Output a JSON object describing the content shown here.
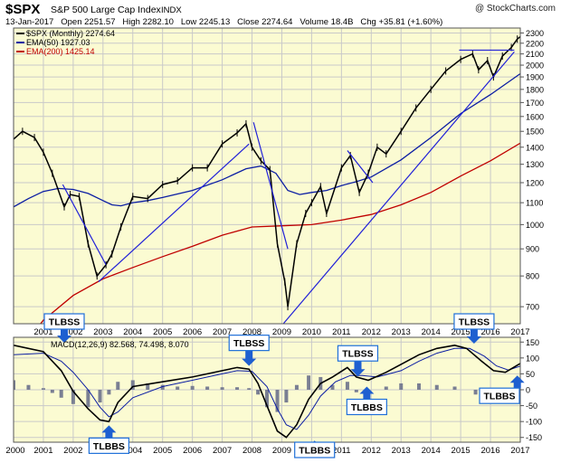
{
  "header": {
    "symbol": "$SPX",
    "name": "S&P 500 Large Cap Index",
    "exchange": "INDX",
    "watermark": "@ StockCharts.com",
    "quote": "13-Jan-2017   Open 2251.57   High 2282.10   Low 2245.13   Close 2274.64   Volume 18.4B   Chg +35.81 (+1.60%)"
  },
  "colors": {
    "panel_bg": "#fbfbd2",
    "price": "#000000",
    "ema50": "#0b1da3",
    "ema200": "#c00000",
    "trendline": "#2020d8",
    "histogram": "#7a7f93",
    "callout_fill": "#ffffff",
    "callout_border": "#1e6fd8",
    "arrow": "#1e5fd0"
  },
  "chart_data": [
    {
      "type": "line",
      "title": "$SPX S&P 500 Large Cap Index INDX",
      "scale": "log",
      "ylim": [
        650,
        2350
      ],
      "xlim": [
        2000,
        2017
      ],
      "x_ticks": [
        "2001",
        "2002",
        "2003",
        "2004",
        "2005",
        "2006",
        "2007",
        "2008",
        "2009",
        "2010",
        "2011",
        "2012",
        "2013",
        "2014",
        "2015",
        "2016",
        "2017"
      ],
      "y_ticks": [
        700,
        800,
        900,
        1000,
        1100,
        1200,
        1300,
        1400,
        1500,
        1600,
        1700,
        1800,
        1900,
        2000,
        2100,
        2200,
        2300
      ],
      "legend": [
        {
          "name": "$SPX (Monthly) 2274.64",
          "color": "#000000"
        },
        {
          "name": "EMA(50) 1927.03",
          "color": "#0b1da3"
        },
        {
          "name": "EMA(200) 1425.14",
          "color": "#c00000"
        }
      ],
      "series": [
        {
          "name": "$SPX (Monthly) 2274.64",
          "points": [
            [
              2000.0,
              1450
            ],
            [
              2000.3,
              1500
            ],
            [
              2000.7,
              1460
            ],
            [
              2001.0,
              1370
            ],
            [
              2001.3,
              1250
            ],
            [
              2001.7,
              1080
            ],
            [
              2001.9,
              1140
            ],
            [
              2002.2,
              1130
            ],
            [
              2002.5,
              920
            ],
            [
              2002.8,
              800
            ],
            [
              2003.1,
              840
            ],
            [
              2003.3,
              880
            ],
            [
              2003.6,
              990
            ],
            [
              2004.0,
              1130
            ],
            [
              2004.5,
              1120
            ],
            [
              2005.0,
              1190
            ],
            [
              2005.5,
              1210
            ],
            [
              2006.0,
              1280
            ],
            [
              2006.5,
              1280
            ],
            [
              2007.0,
              1420
            ],
            [
              2007.5,
              1490
            ],
            [
              2007.8,
              1550
            ],
            [
              2008.0,
              1400
            ],
            [
              2008.3,
              1320
            ],
            [
              2008.6,
              1270
            ],
            [
              2008.85,
              920
            ],
            [
              2009.1,
              780
            ],
            [
              2009.2,
              700
            ],
            [
              2009.5,
              920
            ],
            [
              2009.8,
              1050
            ],
            [
              2010.0,
              1100
            ],
            [
              2010.3,
              1180
            ],
            [
              2010.5,
              1050
            ],
            [
              2011.0,
              1280
            ],
            [
              2011.3,
              1350
            ],
            [
              2011.6,
              1150
            ],
            [
              2011.9,
              1250
            ],
            [
              2012.2,
              1400
            ],
            [
              2012.5,
              1360
            ],
            [
              2013.0,
              1500
            ],
            [
              2013.5,
              1660
            ],
            [
              2014.0,
              1800
            ],
            [
              2014.5,
              1950
            ],
            [
              2015.0,
              2050
            ],
            [
              2015.4,
              2100
            ],
            [
              2015.6,
              1960
            ],
            [
              2015.9,
              2040
            ],
            [
              2016.1,
              1900
            ],
            [
              2016.4,
              2080
            ],
            [
              2016.7,
              2160
            ],
            [
              2016.9,
              2240
            ],
            [
              2017.05,
              2275
            ]
          ]
        },
        {
          "name": "EMA(50) 1927.03",
          "points": [
            [
              2000.0,
              1080
            ],
            [
              2000.5,
              1120
            ],
            [
              2001.0,
              1155
            ],
            [
              2001.5,
              1170
            ],
            [
              2002.0,
              1165
            ],
            [
              2002.5,
              1145
            ],
            [
              2003.0,
              1110
            ],
            [
              2003.3,
              1090
            ],
            [
              2003.6,
              1085
            ],
            [
              2004.0,
              1100
            ],
            [
              2004.5,
              1110
            ],
            [
              2005.0,
              1125
            ],
            [
              2006.0,
              1160
            ],
            [
              2007.0,
              1215
            ],
            [
              2007.8,
              1275
            ],
            [
              2008.3,
              1290
            ],
            [
              2008.8,
              1250
            ],
            [
              2009.2,
              1160
            ],
            [
              2009.6,
              1140
            ],
            [
              2010.0,
              1150
            ],
            [
              2010.5,
              1160
            ],
            [
              2011.0,
              1185
            ],
            [
              2011.5,
              1205
            ],
            [
              2012.0,
              1230
            ],
            [
              2013.0,
              1325
            ],
            [
              2014.0,
              1460
            ],
            [
              2015.0,
              1620
            ],
            [
              2016.0,
              1760
            ],
            [
              2017.0,
              1927
            ]
          ]
        },
        {
          "name": "EMA(200) 1425.14",
          "points": [
            [
              2000.0,
              560
            ],
            [
              2001.0,
              660
            ],
            [
              2002.0,
              735
            ],
            [
              2003.0,
              790
            ],
            [
              2004.0,
              830
            ],
            [
              2005.0,
              870
            ],
            [
              2006.0,
              910
            ],
            [
              2007.0,
              955
            ],
            [
              2008.0,
              990
            ],
            [
              2009.0,
              995
            ],
            [
              2010.0,
              1000
            ],
            [
              2011.0,
              1020
            ],
            [
              2012.0,
              1045
            ],
            [
              2013.0,
              1090
            ],
            [
              2014.0,
              1150
            ],
            [
              2015.0,
              1235
            ],
            [
              2016.0,
              1320
            ],
            [
              2017.0,
              1425
            ]
          ]
        }
      ],
      "trendlines": [
        [
          [
            2001.65,
            1190
          ],
          [
            2003.1,
            840
          ]
        ],
        [
          [
            2002.85,
            780
          ],
          [
            2007.9,
            1420
          ]
        ],
        [
          [
            2008.05,
            1560
          ],
          [
            2009.2,
            900
          ]
        ],
        [
          [
            2009.05,
            650
          ],
          [
            2016.8,
            2120
          ]
        ],
        [
          [
            2011.2,
            1380
          ],
          [
            2012.05,
            1200
          ]
        ],
        [
          [
            2014.95,
            2135
          ],
          [
            2016.8,
            2135
          ]
        ]
      ]
    },
    {
      "type": "bar",
      "title": "MACD(12,26,9) 82.568, 74.498, 8.070",
      "ylim": [
        -165,
        165
      ],
      "y_ticks": [
        150,
        100,
        50,
        0,
        -50,
        -100,
        -150
      ],
      "x_ticks": [
        "2000",
        "2001",
        "2002",
        "2003",
        "2004",
        "2005",
        "2006",
        "2007",
        "2008",
        "2009",
        "2010",
        "2011",
        "2012",
        "2013",
        "2014",
        "2015",
        "2016",
        "2017"
      ],
      "series": [
        {
          "name": "MACD 82.568",
          "points": [
            [
              2000.0,
              140
            ],
            [
              2001.0,
              120
            ],
            [
              2001.6,
              60
            ],
            [
              2002.0,
              -5
            ],
            [
              2002.5,
              -60
            ],
            [
              2002.9,
              -95
            ],
            [
              2003.2,
              -100
            ],
            [
              2003.5,
              -40
            ],
            [
              2004.0,
              10
            ],
            [
              2005.0,
              25
            ],
            [
              2006.0,
              40
            ],
            [
              2006.5,
              50
            ],
            [
              2007.0,
              60
            ],
            [
              2007.5,
              70
            ],
            [
              2007.9,
              65
            ],
            [
              2008.2,
              20
            ],
            [
              2008.5,
              -50
            ],
            [
              2008.85,
              -130
            ],
            [
              2009.15,
              -150
            ],
            [
              2009.5,
              -110
            ],
            [
              2009.9,
              -30
            ],
            [
              2010.3,
              20
            ],
            [
              2010.7,
              40
            ],
            [
              2011.2,
              70
            ],
            [
              2011.5,
              40
            ],
            [
              2011.9,
              30
            ],
            [
              2012.5,
              55
            ],
            [
              2013.0,
              80
            ],
            [
              2013.6,
              110
            ],
            [
              2014.2,
              130
            ],
            [
              2014.8,
              140
            ],
            [
              2015.2,
              130
            ],
            [
              2015.7,
              90
            ],
            [
              2016.1,
              60
            ],
            [
              2016.5,
              55
            ],
            [
              2017.0,
              82.568
            ]
          ]
        },
        {
          "name": "Signal 74.498",
          "points": [
            [
              2000.0,
              110
            ],
            [
              2001.0,
              115
            ],
            [
              2001.6,
              90
            ],
            [
              2002.0,
              55
            ],
            [
              2002.5,
              0
            ],
            [
              2002.9,
              -55
            ],
            [
              2003.2,
              -85
            ],
            [
              2003.5,
              -70
            ],
            [
              2004.0,
              -25
            ],
            [
              2005.0,
              10
            ],
            [
              2006.0,
              30
            ],
            [
              2007.0,
              50
            ],
            [
              2007.5,
              60
            ],
            [
              2008.0,
              58
            ],
            [
              2008.5,
              10
            ],
            [
              2008.85,
              -60
            ],
            [
              2009.15,
              -110
            ],
            [
              2009.5,
              -125
            ],
            [
              2009.9,
              -80
            ],
            [
              2010.3,
              -20
            ],
            [
              2010.8,
              25
            ],
            [
              2011.3,
              45
            ],
            [
              2011.7,
              45
            ],
            [
              2012.2,
              40
            ],
            [
              2013.0,
              60
            ],
            [
              2013.6,
              90
            ],
            [
              2014.2,
              115
            ],
            [
              2014.8,
              130
            ],
            [
              2015.3,
              130
            ],
            [
              2015.8,
              105
            ],
            [
              2016.2,
              75
            ],
            [
              2016.6,
              62
            ],
            [
              2017.0,
              74.498
            ]
          ]
        },
        {
          "name": "Histogram 8.070",
          "points": [
            [
              2000.0,
              30
            ],
            [
              2000.5,
              15
            ],
            [
              2001.0,
              5
            ],
            [
              2001.3,
              -10
            ],
            [
              2001.6,
              -25
            ],
            [
              2002.0,
              -45
            ],
            [
              2002.5,
              -55
            ],
            [
              2002.9,
              -40
            ],
            [
              2003.2,
              -15
            ],
            [
              2003.5,
              25
            ],
            [
              2004.0,
              30
            ],
            [
              2004.5,
              20
            ],
            [
              2005.0,
              15
            ],
            [
              2005.5,
              10
            ],
            [
              2006.0,
              12
            ],
            [
              2006.5,
              10
            ],
            [
              2007.0,
              8
            ],
            [
              2007.5,
              8
            ],
            [
              2007.9,
              5
            ],
            [
              2008.2,
              -15
            ],
            [
              2008.5,
              -55
            ],
            [
              2008.85,
              -70
            ],
            [
              2009.15,
              -40
            ],
            [
              2009.5,
              15
            ],
            [
              2009.9,
              45
            ],
            [
              2010.3,
              40
            ],
            [
              2010.7,
              15
            ],
            [
              2011.2,
              25
            ],
            [
              2011.5,
              -8
            ],
            [
              2011.9,
              -15
            ],
            [
              2012.5,
              10
            ],
            [
              2013.0,
              20
            ],
            [
              2013.6,
              20
            ],
            [
              2014.2,
              15
            ],
            [
              2014.8,
              10
            ],
            [
              2015.2,
              0
            ],
            [
              2015.5,
              -15
            ],
            [
              2015.8,
              -20
            ],
            [
              2016.1,
              -15
            ],
            [
              2016.5,
              -5
            ],
            [
              2017.0,
              8
            ]
          ]
        }
      ]
    }
  ],
  "annotations": [
    {
      "label": "TLBSS",
      "at": [
        2001.7,
        148
      ],
      "arrow": "down"
    },
    {
      "label": "TLBBS",
      "at": [
        2003.2,
        -112
      ],
      "arrow": "up"
    },
    {
      "label": "TLBSS",
      "at": [
        2007.9,
        75
      ],
      "arrow": "down"
    },
    {
      "label": "TLBBS",
      "at": [
        2010.1,
        -160
      ],
      "arrow": "up"
    },
    {
      "label": "TLBSS",
      "at": [
        2011.55,
        42
      ],
      "arrow": "down"
    },
    {
      "label": "TLBBS",
      "at": [
        2011.85,
        10
      ],
      "arrow": "up"
    },
    {
      "label": "TLBSS",
      "at": [
        2015.45,
        145
      ],
      "arrow": "down"
    },
    {
      "label": "TLBBS",
      "at": [
        2016.9,
        45
      ],
      "arrow": "up"
    }
  ]
}
